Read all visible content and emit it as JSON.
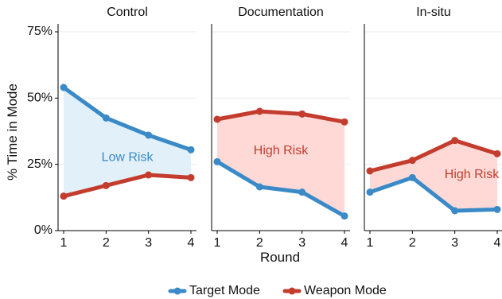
{
  "chart_data": {
    "type": "line",
    "ylabel": "% Time in Mode",
    "xlabel": "Round",
    "x": [
      1,
      2,
      3,
      4
    ],
    "ylim": [
      0,
      0.78
    ],
    "yticks": [
      0,
      0.25,
      0.5,
      0.75
    ],
    "ytick_labels": [
      "0%",
      "25%",
      "50%",
      "75%"
    ],
    "grid": "horizontal",
    "legend": {
      "position": "bottom",
      "entries": [
        {
          "name": "Target Mode",
          "color": "#3a8ac8"
        },
        {
          "name": "Weapon Mode",
          "color": "#c33c2e"
        }
      ]
    },
    "panels": [
      {
        "title": "Control",
        "series": [
          {
            "name": "Target Mode",
            "values": [
              0.54,
              0.425,
              0.36,
              0.305
            ]
          },
          {
            "name": "Weapon Mode",
            "values": [
              0.13,
              0.17,
              0.21,
              0.2
            ]
          }
        ],
        "annotation": {
          "text": "Low Risk",
          "color": "#3a8ac8",
          "fill": "#e1f0f9",
          "x": 2.5,
          "y": 0.275
        }
      },
      {
        "title": "Documentation",
        "series": [
          {
            "name": "Target Mode",
            "values": [
              0.26,
              0.165,
              0.145,
              0.055
            ]
          },
          {
            "name": "Weapon Mode",
            "values": [
              0.42,
              0.45,
              0.44,
              0.41
            ]
          }
        ],
        "annotation": {
          "text": "High Risk",
          "color": "#c33c2e",
          "fill": "#ffd9d6",
          "x": 2.5,
          "y": 0.3
        }
      },
      {
        "title": "In-situ",
        "series": [
          {
            "name": "Target Mode",
            "values": [
              0.145,
              0.2,
              0.075,
              0.08
            ]
          },
          {
            "name": "Weapon Mode",
            "values": [
              0.225,
              0.265,
              0.34,
              0.29
            ]
          }
        ],
        "annotation": {
          "text": "High Risk",
          "color": "#c33c2e",
          "fill": "#ffd9d6",
          "x": 3.4,
          "y": 0.21
        }
      }
    ]
  }
}
